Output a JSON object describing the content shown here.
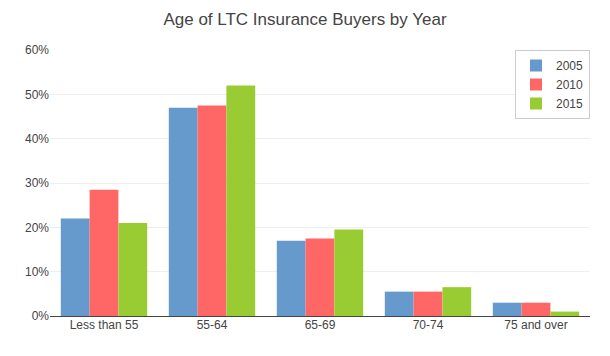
{
  "chart_data": {
    "type": "bar",
    "title": "Age of LTC Insurance Buyers by Year",
    "categories": [
      "Less than 55",
      "55-64",
      "65-69",
      "70-74",
      "75 and over"
    ],
    "series": [
      {
        "name": "2005",
        "color": "#6699CC",
        "values": [
          22,
          47,
          17,
          5.5,
          3
        ]
      },
      {
        "name": "2010",
        "color": "#FF6666",
        "values": [
          28.5,
          47.5,
          17.5,
          5.5,
          3
        ]
      },
      {
        "name": "2015",
        "color": "#99CC33",
        "values": [
          21,
          52,
          19.5,
          6.5,
          1
        ]
      }
    ],
    "ylim": [
      0,
      60
    ],
    "yticks": [
      {
        "value": 0,
        "label": "0%"
      },
      {
        "value": 10,
        "label": "10%"
      },
      {
        "value": 20,
        "label": "20%"
      },
      {
        "value": 30,
        "label": "30%"
      },
      {
        "value": 40,
        "label": "40%"
      },
      {
        "value": 50,
        "label": "50%"
      },
      {
        "value": 60,
        "label": "60%"
      }
    ],
    "grid": true,
    "legend": "upper right"
  }
}
